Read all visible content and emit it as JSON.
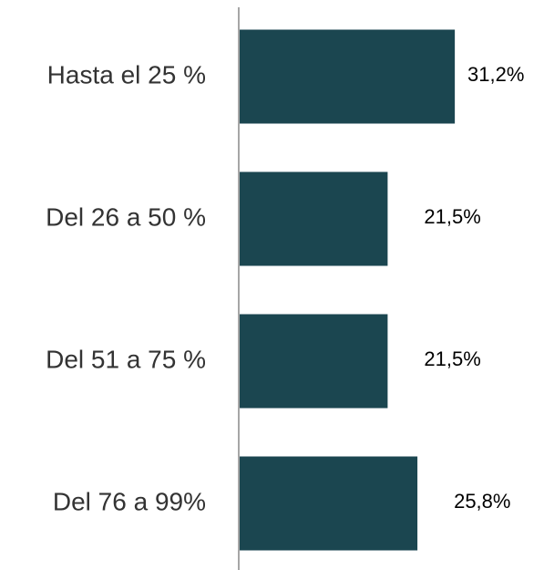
{
  "chart_data": {
    "type": "bar",
    "orientation": "horizontal",
    "categories": [
      "Hasta el 25 %",
      "Del 26 a 50 %",
      "Del 51 a 75 %",
      "Del 76 a 99%"
    ],
    "values": [
      31.2,
      21.5,
      21.5,
      25.8
    ],
    "value_labels": [
      "31,2%",
      "21,5%",
      "21,5%",
      "25,8%"
    ],
    "color": "#1b4650"
  }
}
